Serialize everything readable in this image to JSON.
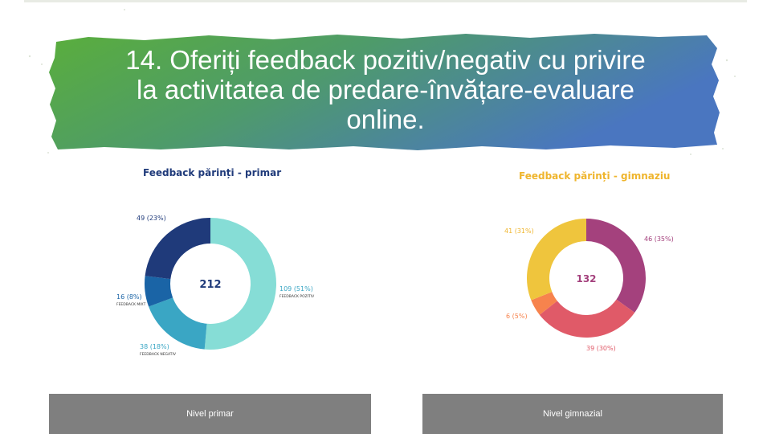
{
  "slide": {
    "title_lines": [
      "14. Oferiți feedback pozitiv/negativ cu privire",
      "la activitatea de predare-învățare-evaluare",
      "online."
    ],
    "accent_colors": {
      "banner_start": "#5aae3c",
      "banner_end": "#4a76c0"
    }
  },
  "charts": {
    "primar": {
      "label": "Nivel primar"
    },
    "gimnaziu": {
      "label": "Nivel gimnazial"
    }
  },
  "chart_data": [
    {
      "type": "pie",
      "title": "Feedback părinți - primar",
      "total": "212",
      "series": [
        {
          "name": "FEEDBACK POZITIV",
          "value": 109,
          "label": "109 (51%)",
          "color": "#86ddd6"
        },
        {
          "name": "FEEDBACK NEGATIV",
          "value": 38,
          "label": "38 (18%)",
          "color": "#3aa6c4"
        },
        {
          "name": "FEEDBACK MIXT",
          "value": 16,
          "label": "16 (8%)",
          "color": "#1a64a6"
        },
        {
          "name": "",
          "value": 49,
          "label": "49 (23%)",
          "color": "#1f3a7a"
        }
      ]
    },
    {
      "type": "pie",
      "title": "Feedback părinți - gimnaziu",
      "total": "132",
      "series": [
        {
          "name": "",
          "value": 46,
          "label": "46 (35%)",
          "color": "#a4417d"
        },
        {
          "name": "",
          "value": 39,
          "label": "39 (30%)",
          "color": "#e05a68"
        },
        {
          "name": "",
          "value": 6,
          "label": "6 (5%)",
          "color": "#f7834d"
        },
        {
          "name": "",
          "value": 41,
          "label": "41 (31%)",
          "color": "#efc53d"
        }
      ]
    }
  ]
}
